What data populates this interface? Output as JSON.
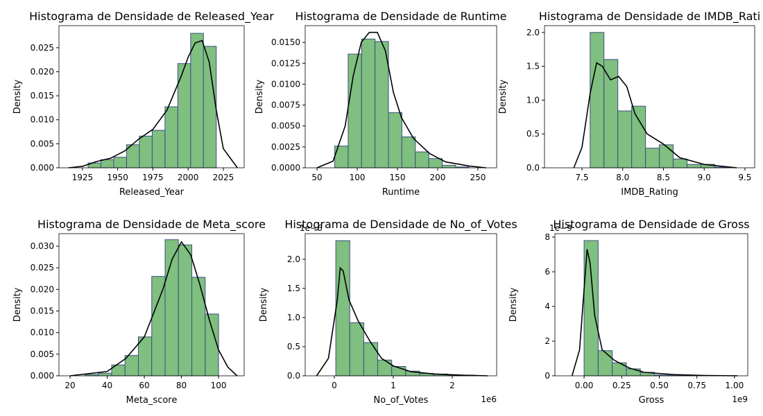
{
  "chart_data": [
    {
      "type": "histogram",
      "title": "Histograma de Densidade de Released_Year",
      "xlabel": "Released_Year",
      "ylabel": "Density",
      "bins": [
        1929,
        1938.1,
        1947.2,
        1956.3,
        1965.4,
        1974.5,
        1983.6,
        1992.7,
        2001.8,
        2010.9,
        2020
      ],
      "values": [
        0.001,
        0.0017,
        0.0022,
        0.0048,
        0.0066,
        0.0078,
        0.0127,
        0.0217,
        0.028,
        0.0253
      ],
      "kde": {
        "x": [
          1915,
          1925,
          1935,
          1945,
          1955,
          1965,
          1975,
          1985,
          1995,
          2000,
          2005,
          2010,
          2015,
          2020,
          2025,
          2035
        ],
        "values": [
          0,
          0.0003,
          0.0013,
          0.002,
          0.0035,
          0.006,
          0.008,
          0.012,
          0.019,
          0.023,
          0.026,
          0.0265,
          0.022,
          0.012,
          0.004,
          0
        ]
      },
      "color": "#7fbf7f",
      "edgecolor": "#3d4f80",
      "line_color": "#000000",
      "xlim": [
        1908.3,
        2039.8
      ],
      "ylim": [
        0,
        0.0296
      ],
      "xticks": [
        1925,
        1950,
        1975,
        2000,
        2025
      ],
      "yticks": [
        {
          "value": 0,
          "label": "0.000"
        },
        {
          "value": 0.005,
          "label": "0.005"
        },
        {
          "value": 0.01,
          "label": "0.010"
        },
        {
          "value": 0.015,
          "label": "0.015"
        },
        {
          "value": 0.02,
          "label": "0.020"
        },
        {
          "value": 0.025,
          "label": "0.025"
        }
      ]
    },
    {
      "type": "histogram",
      "title": "Histograma de Densidade de Runtime",
      "xlabel": "Runtime",
      "ylabel": "Density",
      "bins": [
        72,
        88.7,
        105.4,
        122.1,
        138.8,
        155.5,
        172.2,
        188.9,
        205.6,
        222.3,
        239
      ],
      "values": [
        0.0026,
        0.0136,
        0.0154,
        0.0151,
        0.0066,
        0.0037,
        0.0019,
        0.0011,
        0.0003,
        0.0001
      ],
      "kde": {
        "x": [
          50,
          70,
          85,
          95,
          105,
          115,
          125,
          135,
          145,
          155,
          170,
          190,
          210,
          240,
          260
        ],
        "values": [
          0,
          0.0008,
          0.005,
          0.011,
          0.015,
          0.0162,
          0.0162,
          0.014,
          0.009,
          0.006,
          0.0035,
          0.0017,
          0.0007,
          0.0002,
          0
        ]
      },
      "color": "#7fbf7f",
      "edgecolor": "#3d4f80",
      "line_color": "#000000",
      "xlim": [
        35.3,
        273.3
      ],
      "ylim": [
        0,
        0.017
      ],
      "xticks": [
        50,
        100,
        150,
        200,
        250
      ],
      "yticks": [
        {
          "value": 0,
          "label": "0.0000"
        },
        {
          "value": 0.0025,
          "label": "0.0025"
        },
        {
          "value": 0.005,
          "label": "0.0050"
        },
        {
          "value": 0.0075,
          "label": "0.0075"
        },
        {
          "value": 0.01,
          "label": "0.0100"
        },
        {
          "value": 0.0125,
          "label": "0.0125"
        },
        {
          "value": 0.015,
          "label": "0.0150"
        }
      ]
    },
    {
      "type": "histogram",
      "title": "Histograma de Densidade de IMDB_Rati",
      "xlabel": "IMDB_Rating",
      "ylabel": "Density",
      "bins": [
        7.6,
        7.77,
        7.94,
        8.11,
        8.28,
        8.45,
        8.62,
        8.79,
        8.96,
        9.13,
        9.3
      ],
      "values": [
        2.0,
        1.6,
        0.84,
        0.91,
        0.29,
        0.34,
        0.13,
        0.05,
        0.05,
        0.01
      ],
      "kde": {
        "x": [
          7.4,
          7.5,
          7.6,
          7.68,
          7.75,
          7.85,
          7.95,
          8.05,
          8.15,
          8.3,
          8.5,
          8.7,
          9.0,
          9.4
        ],
        "values": [
          0,
          0.3,
          1.1,
          1.55,
          1.5,
          1.3,
          1.35,
          1.2,
          0.8,
          0.5,
          0.35,
          0.15,
          0.05,
          0
        ]
      },
      "color": "#7fbf7f",
      "edgecolor": "#3d4f80",
      "line_color": "#000000",
      "xlim": [
        7.04,
        9.62
      ],
      "ylim": [
        0,
        2.1
      ],
      "xticks": [
        7.5,
        {
          "value": 8,
          "label": "8.0"
        },
        8.5,
        {
          "value": 9,
          "label": "9.0"
        },
        9.5
      ],
      "yticks": [
        {
          "value": 0,
          "label": "0.0"
        },
        0.5,
        {
          "value": 1,
          "label": "1.0"
        },
        1.5,
        {
          "value": 2,
          "label": "2.0"
        }
      ]
    },
    {
      "type": "histogram",
      "title": "Histograma de Densidade de Meta_score",
      "xlabel": "Meta_score",
      "ylabel": "Density",
      "bins": [
        28,
        35.2,
        42.4,
        49.6,
        56.8,
        64,
        71.2,
        78.4,
        85.6,
        92.8,
        100
      ],
      "values": [
        0.0003,
        0.0006,
        0.0025,
        0.0047,
        0.009,
        0.023,
        0.0315,
        0.0303,
        0.0228,
        0.0143
      ],
      "kde": {
        "x": [
          20,
          30,
          40,
          50,
          60,
          70,
          75,
          80,
          85,
          90,
          95,
          100,
          105,
          110
        ],
        "values": [
          0,
          0.0005,
          0.001,
          0.004,
          0.009,
          0.02,
          0.027,
          0.031,
          0.028,
          0.021,
          0.013,
          0.006,
          0.002,
          0
        ]
      },
      "color": "#7fbf7f",
      "edgecolor": "#3d4f80",
      "line_color": "#000000",
      "xlim": [
        14,
        113.8
      ],
      "ylim": [
        0,
        0.0329
      ],
      "xticks": [
        20,
        40,
        60,
        80,
        100
      ],
      "yticks": [
        {
          "value": 0,
          "label": "0.000"
        },
        {
          "value": 0.005,
          "label": "0.005"
        },
        {
          "value": 0.01,
          "label": "0.010"
        },
        {
          "value": 0.015,
          "label": "0.015"
        },
        {
          "value": 0.02,
          "label": "0.020"
        },
        {
          "value": 0.025,
          "label": "0.025"
        },
        {
          "value": 0.03,
          "label": "0.030"
        }
      ]
    },
    {
      "type": "histogram",
      "title": "Histograma de Densidade de No_of_Votes",
      "xlabel": "No_of_Votes",
      "ylabel": "Density",
      "x_offset_label": "1e6",
      "y_offset_label": "1e−6",
      "bins": [
        25000,
        262000,
        499000,
        736000,
        973000,
        1210000,
        1447000,
        1684000,
        1921000,
        2158000,
        2395000
      ],
      "values": [
        2.32e-06,
        9.1e-07,
        5.7e-07,
        2.7e-07,
        1.6e-07,
        8e-08,
        4e-08,
        3e-08,
        1e-08,
        1e-08
      ],
      "kde": {
        "x": [
          -300000,
          -100000,
          50000,
          100000,
          150000,
          250000,
          400000,
          600000,
          800000,
          1000000,
          1300000,
          1700000,
          2200000,
          2600000
        ],
        "values": [
          0,
          3e-07,
          1.3e-06,
          1.85e-06,
          1.8e-06,
          1.3e-06,
          9.5e-07,
          6e-07,
          3e-07,
          1.7e-07,
          7e-08,
          3e-08,
          1e-08,
          0
        ]
      },
      "color": "#7fbf7f",
      "edgecolor": "#3d4f80",
      "line_color": "#000000",
      "xlim": [
        -494000,
        2753000
      ],
      "ylim": [
        0,
        2.44e-06
      ],
      "xticks": [
        0,
        {
          "value": 1000000,
          "label": "1"
        },
        {
          "value": 2000000,
          "label": "2"
        }
      ],
      "yticks": [
        {
          "value": 0,
          "label": "0.0"
        },
        {
          "value": 5e-07,
          "label": "0.5"
        },
        {
          "value": 1e-06,
          "label": "1.0"
        },
        {
          "value": 1.5e-06,
          "label": "1.5"
        },
        {
          "value": 2e-06,
          "label": "2.0"
        }
      ]
    },
    {
      "type": "histogram",
      "title": "Histograma de Densidade de Gross",
      "xlabel": "Gross",
      "ylabel": "Density",
      "x_offset_label": "1e9",
      "y_offset_label": "1e−9",
      "bins": [
        0,
        93600000,
        187200000,
        280800000,
        374400000,
        468000000,
        561600000,
        655200000,
        748800000,
        842400000,
        936000000
      ],
      "values": [
        7.8e-09,
        1.45e-09,
        7.5e-10,
        4e-10,
        2e-10,
        5e-11,
        3e-11,
        1e-11,
        5e-12,
        5e-12
      ],
      "kde": {
        "x": [
          -80000000,
          -30000000,
          0,
          20000000,
          40000000,
          70000000,
          120000000,
          200000000,
          300000000,
          400000000,
          600000000,
          800000000,
          1020000000
        ],
        "values": [
          0,
          1.5e-09,
          5e-09,
          7.3e-09,
          6.5e-09,
          3.5e-09,
          1.5e-09,
          9e-10,
          4.5e-10,
          2e-10,
          7e-11,
          2e-11,
          0
        ]
      },
      "color": "#7fbf7f",
      "edgecolor": "#3d4f80",
      "line_color": "#000000",
      "xlim": [
        -194000000,
        1088000000
      ],
      "ylim": [
        0,
        8.2e-09
      ],
      "xticks": [
        {
          "value": 0,
          "label": "0.00"
        },
        {
          "value": 250000000,
          "label": "0.25"
        },
        {
          "value": 500000000,
          "label": "0.50"
        },
        {
          "value": 750000000,
          "label": "0.75"
        },
        {
          "value": 1000000000,
          "label": "1.00"
        }
      ],
      "yticks": [
        0,
        {
          "value": 2e-09,
          "label": "2"
        },
        {
          "value": 4e-09,
          "label": "4"
        },
        {
          "value": 6e-09,
          "label": "6"
        },
        {
          "value": 8e-09,
          "label": "8"
        }
      ]
    }
  ]
}
